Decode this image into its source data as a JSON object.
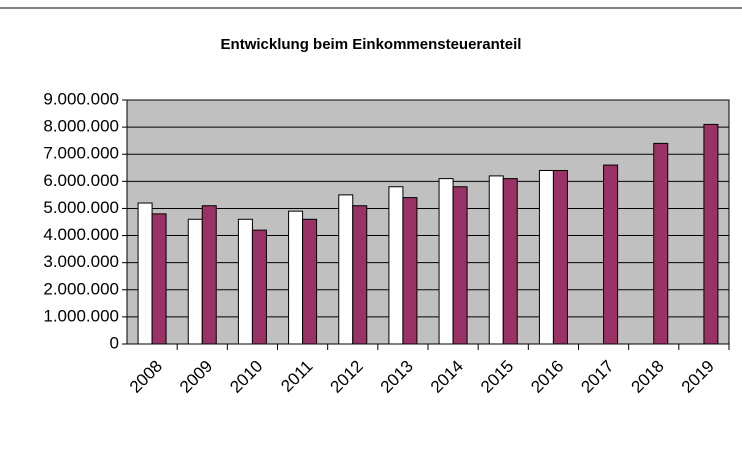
{
  "chart_data": {
    "type": "bar",
    "title": "Entwicklung beim Einkommensteueranteil",
    "categories": [
      "2008",
      "2009",
      "2010",
      "2011",
      "2012",
      "2013",
      "2014",
      "2015",
      "2016",
      "2017",
      "2018",
      "2019"
    ],
    "series": [
      {
        "color": "#ffffff",
        "values": [
          5200000,
          4600000,
          4600000,
          4900000,
          5500000,
          5800000,
          6100000,
          6200000,
          6400000,
          null,
          null,
          null
        ]
      },
      {
        "color": "#993366",
        "values": [
          4800000,
          5100000,
          4200000,
          4600000,
          5100000,
          5400000,
          5800000,
          6100000,
          6400000,
          6600000,
          7400000,
          8100000
        ]
      }
    ],
    "ylim": [
      0,
      9000000
    ],
    "yticks": [
      0,
      {
        "value": 1000000,
        "label": "1.000.000"
      },
      {
        "value": 2000000,
        "label": "2.000.000"
      },
      {
        "value": 3000000,
        "label": "3.000.000"
      },
      {
        "value": 4000000,
        "label": "4.000.000"
      },
      {
        "value": 5000000,
        "label": "5.000.000"
      },
      {
        "value": 6000000,
        "label": "6.000.000"
      },
      {
        "value": 7000000,
        "label": "7.000.000"
      },
      {
        "value": 8000000,
        "label": "8.000.000"
      },
      {
        "value": 9000000,
        "label": "9.000.000"
      }
    ],
    "grid": true,
    "plot_background": "#c0c0c0"
  }
}
